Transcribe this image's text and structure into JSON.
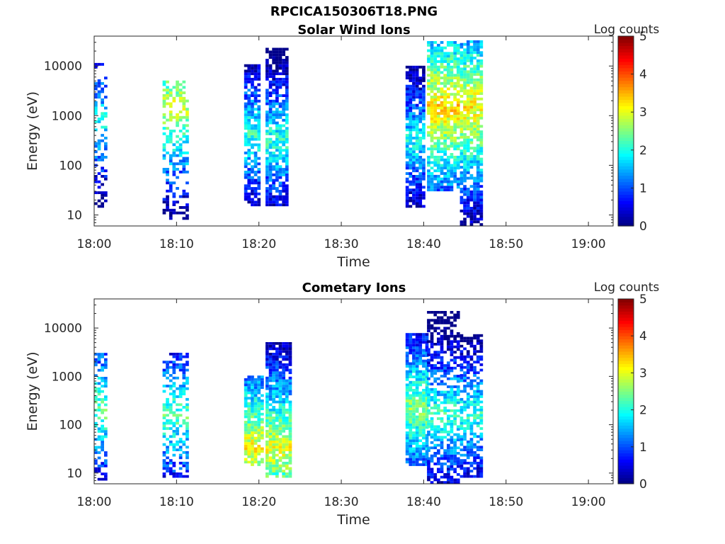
{
  "figure_title": "RPCICA150306T18.PNG",
  "colors": {
    "axis": "#262626",
    "background": "#ffffff",
    "colormap": [
      "#00008f",
      "#0000ff",
      "#00ffff",
      "#ffff00",
      "#ff0000",
      "#800000"
    ]
  },
  "chart_data": [
    {
      "type": "heatmap",
      "title": "Solar Wind Ions",
      "xlabel": "Time",
      "ylabel": "Energy (eV)",
      "xticks": [
        "18:00",
        "18:10",
        "18:20",
        "18:30",
        "18:40",
        "18:50",
        "19:00"
      ],
      "xlim_minutes": [
        0,
        63
      ],
      "yticks": [
        10,
        100,
        1000,
        10000
      ],
      "ytick_labels": [
        "10",
        "100",
        "1000",
        "10000"
      ],
      "ylim": [
        6,
        40000
      ],
      "yscale": "log",
      "colorbar": {
        "label": "Log counts",
        "range": [
          0,
          5
        ],
        "ticks": [
          "0",
          "1",
          "2",
          "3",
          "4",
          "5"
        ]
      },
      "bursts": [
        {
          "t_start": 0.0,
          "t_end": 1.6,
          "e_min": 14,
          "e_max": 12000,
          "peak_energy": 700,
          "peak_log_counts": 2.0,
          "density": 0.45
        },
        {
          "t_start": 8.3,
          "t_end": 11.4,
          "e_min": 8,
          "e_max": 4500,
          "peak_energy": 1500,
          "peak_log_counts": 2.9,
          "density": 0.45
        },
        {
          "t_start": 18.2,
          "t_end": 20.2,
          "e_min": 15,
          "e_max": 10000,
          "peak_energy": 400,
          "peak_log_counts": 2.1,
          "density": 0.78
        },
        {
          "t_start": 20.8,
          "t_end": 23.6,
          "e_min": 15,
          "e_max": 22000,
          "peak_energy": 300,
          "peak_log_counts": 2.1,
          "density": 0.78
        },
        {
          "t_start": 37.8,
          "t_end": 40.2,
          "e_min": 14,
          "e_max": 10000,
          "peak_energy": 300,
          "peak_log_counts": 1.9,
          "density": 0.85
        },
        {
          "t_start": 40.4,
          "t_end": 44.4,
          "e_min": 30,
          "e_max": 30000,
          "peak_energy": 1400,
          "peak_log_counts": 3.3,
          "density": 0.8
        },
        {
          "t_start": 44.4,
          "t_end": 47.0,
          "e_min": 6,
          "e_max": 30000,
          "peak_energy": 1400,
          "peak_log_counts": 3.2,
          "density": 0.8
        }
      ]
    },
    {
      "type": "heatmap",
      "title": "Cometary Ions",
      "xlabel": "Time",
      "ylabel": "Energy (eV)",
      "xticks": [
        "18:00",
        "18:10",
        "18:20",
        "18:30",
        "18:40",
        "18:50",
        "19:00"
      ],
      "xlim_minutes": [
        0,
        63
      ],
      "yticks": [
        10,
        100,
        1000,
        10000
      ],
      "ytick_labels": [
        "10",
        "100",
        "1000",
        "10000"
      ],
      "ylim": [
        6,
        40000
      ],
      "yscale": "log",
      "colorbar": {
        "label": "Log counts",
        "range": [
          0,
          5
        ],
        "ticks": [
          "0",
          "1",
          "2",
          "3",
          "4",
          "5"
        ]
      },
      "bursts": [
        {
          "t_start": 0.0,
          "t_end": 1.6,
          "e_min": 7,
          "e_max": 3000,
          "peak_energy": 200,
          "peak_log_counts": 2.4,
          "density": 0.55
        },
        {
          "t_start": 8.3,
          "t_end": 11.4,
          "e_min": 8,
          "e_max": 3000,
          "peak_energy": 150,
          "peak_log_counts": 2.3,
          "density": 0.55
        },
        {
          "t_start": 18.2,
          "t_end": 20.4,
          "e_min": 14,
          "e_max": 1000,
          "peak_energy": 30,
          "peak_log_counts": 3.1,
          "density": 0.85
        },
        {
          "t_start": 20.8,
          "t_end": 23.8,
          "e_min": 8,
          "e_max": 5000,
          "peak_energy": 30,
          "peak_log_counts": 3.0,
          "density": 0.85
        },
        {
          "t_start": 37.8,
          "t_end": 40.4,
          "e_min": 14,
          "e_max": 7000,
          "peak_energy": 200,
          "peak_log_counts": 2.6,
          "density": 0.88
        },
        {
          "t_start": 40.4,
          "t_end": 44.4,
          "e_min": 6,
          "e_max": 22000,
          "peak_energy": 150,
          "peak_log_counts": 2.2,
          "density": 0.65
        },
        {
          "t_start": 44.4,
          "t_end": 47.0,
          "e_min": 8,
          "e_max": 7000,
          "peak_energy": 150,
          "peak_log_counts": 2.1,
          "density": 0.65
        }
      ]
    }
  ]
}
